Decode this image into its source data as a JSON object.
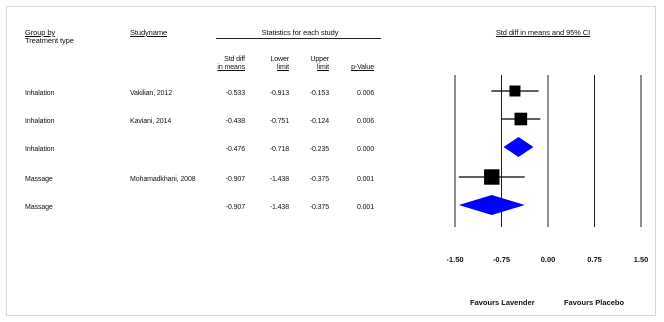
{
  "headers": {
    "group_by": "Group by",
    "treatment_type": "Treatment type",
    "study_name": "Studyname",
    "stats_title": "Statistics for each study",
    "std_diff_line1": "Std diff",
    "std_diff_line2": "in means",
    "lower_line1": "Lower",
    "lower_line2": "limit",
    "upper_line1": "Upper",
    "upper_line2": "limit",
    "pvalue": "p-Value",
    "plot_title": "Std diff in means and 95% CI"
  },
  "rows": [
    {
      "group": "Inhalation",
      "study": "Vakilian, 2012",
      "std_diff": "-0.533",
      "lower": "-0.913",
      "upper": "-0.153",
      "p": "0.006"
    },
    {
      "group": "Inhalation",
      "study": "Kaviani, 2014",
      "std_diff": "-0.438",
      "lower": "-0.751",
      "upper": "-0.124",
      "p": "0.006"
    },
    {
      "group": "Inhalation",
      "study": "",
      "std_diff": "-0.476",
      "lower": "-0.718",
      "upper": "-0.235",
      "p": "0.000"
    },
    {
      "group": "Massage",
      "study": "Mohamadkhani, 2008",
      "std_diff": "-0.907",
      "lower": "-1.438",
      "upper": "-0.375",
      "p": "0.001"
    },
    {
      "group": "Massage",
      "study": "",
      "std_diff": "-0.907",
      "lower": "-1.438",
      "upper": "-0.375",
      "p": "0.001"
    }
  ],
  "legend": {
    "left": "Favours Lavender",
    "right": "Favours Placebo"
  },
  "chart_data": {
    "type": "forest",
    "title": "Std diff in means and 95% CI",
    "xlim": [
      -1.5,
      1.5
    ],
    "x_ticks": [
      -1.5,
      -0.75,
      0.0,
      0.75,
      1.5
    ],
    "x_tick_labels": [
      "-1.50",
      "-0.75",
      "0.00",
      "0.75",
      "1.50"
    ],
    "marker_color": "#000000",
    "summary_color": "#0000ff",
    "points": [
      {
        "kind": "study",
        "estimate": -0.533,
        "lower": -0.913,
        "upper": -0.153,
        "weight": 1.0
      },
      {
        "kind": "study",
        "estimate": -0.438,
        "lower": -0.751,
        "upper": -0.124,
        "weight": 1.15
      },
      {
        "kind": "summary",
        "estimate": -0.476,
        "lower": -0.718,
        "upper": -0.235
      },
      {
        "kind": "study",
        "estimate": -0.907,
        "lower": -1.438,
        "upper": -0.375,
        "weight": 1.4
      },
      {
        "kind": "summary",
        "estimate": -0.907,
        "lower": -1.438,
        "upper": -0.375
      }
    ]
  }
}
